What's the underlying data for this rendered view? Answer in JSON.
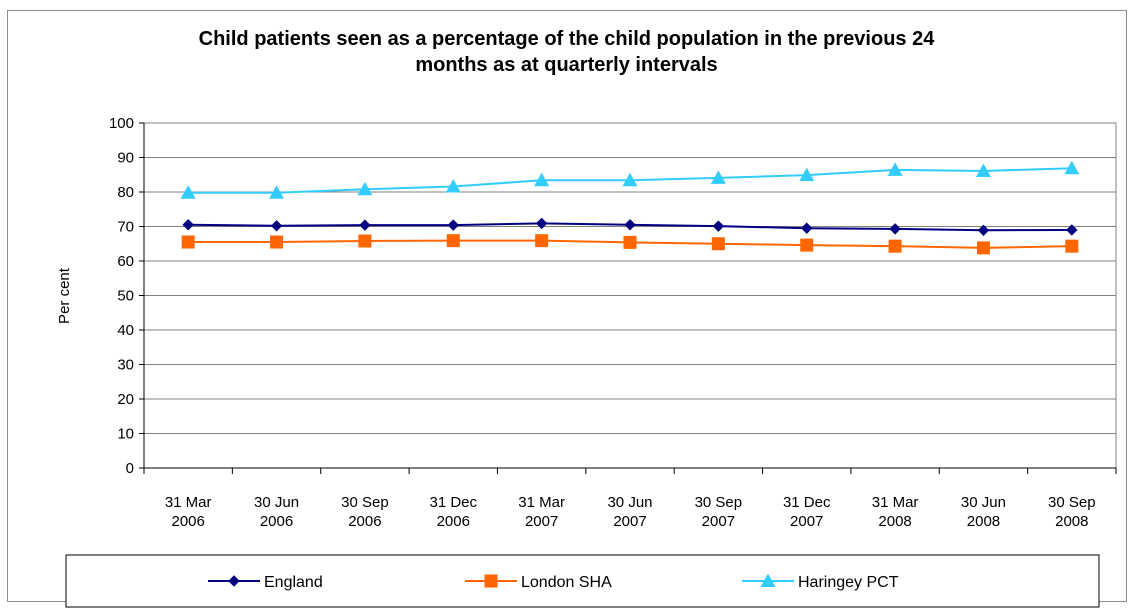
{
  "chart_data": {
    "type": "line",
    "title_lines": [
      "Child patients seen as a percentage of the child population in the previous 24",
      "months as at quarterly intervals"
    ],
    "ylabel": "Per cent",
    "xlabel": "",
    "ylim": [
      0,
      100
    ],
    "yticks": [
      0,
      10,
      20,
      30,
      40,
      50,
      60,
      70,
      80,
      90,
      100
    ],
    "grid": true,
    "legend_position": "bottom",
    "categories": [
      [
        "31 Mar",
        "2006"
      ],
      [
        "30 Jun",
        "2006"
      ],
      [
        "30 Sep",
        "2006"
      ],
      [
        "31 Dec",
        "2006"
      ],
      [
        "31 Mar",
        "2007"
      ],
      [
        "30 Jun",
        "2007"
      ],
      [
        "30 Sep",
        "2007"
      ],
      [
        "31 Dec",
        "2007"
      ],
      [
        "31 Mar",
        "2008"
      ],
      [
        "30 Jun",
        "2008"
      ],
      [
        "30 Sep",
        "2008"
      ]
    ],
    "series": [
      {
        "name": "England",
        "color": "#000080",
        "marker": "diamond",
        "values": [
          70.5,
          70.2,
          70.4,
          70.4,
          70.9,
          70.5,
          70.1,
          69.5,
          69.3,
          68.9,
          69.0
        ]
      },
      {
        "name": "London SHA",
        "color": "#ff6600",
        "marker": "square",
        "values": [
          65.5,
          65.5,
          65.8,
          65.9,
          65.9,
          65.4,
          65.0,
          64.6,
          64.3,
          63.8,
          64.3
        ]
      },
      {
        "name": "Haringey PCT",
        "color": "#33ccff",
        "marker": "triangle",
        "values": [
          79.8,
          79.8,
          80.8,
          81.6,
          83.4,
          83.4,
          84.1,
          84.9,
          86.4,
          86.1,
          86.9
        ]
      }
    ]
  }
}
